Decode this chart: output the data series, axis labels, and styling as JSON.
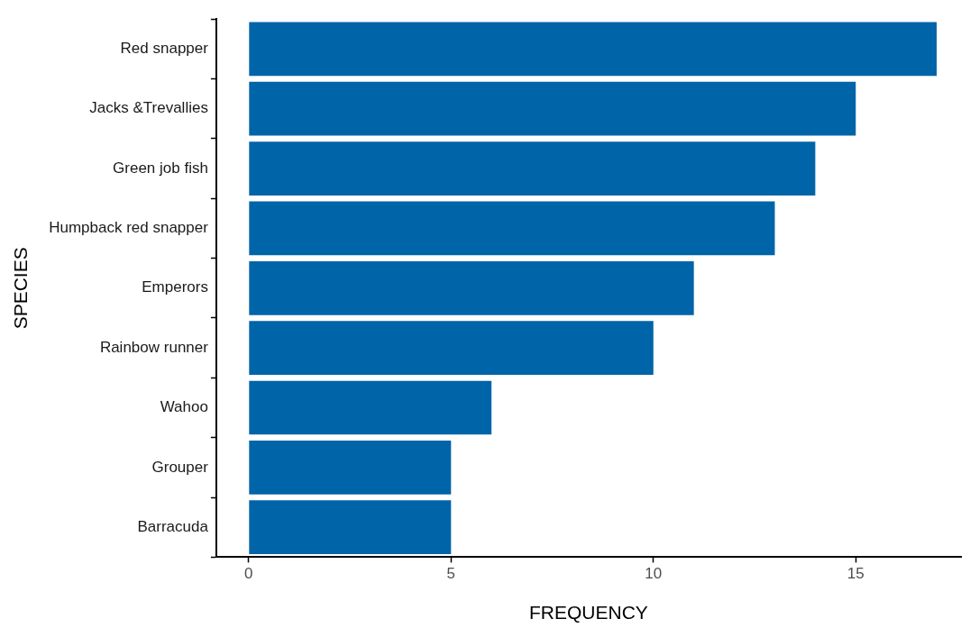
{
  "chart_data": {
    "type": "bar",
    "orientation": "horizontal",
    "xlabel": "FREQUENCY",
    "ylabel": "SPECIES",
    "categories": [
      "Red snapper",
      "Jacks &Trevallies",
      "Green job fish",
      "Humpback red snapper",
      "Emperors",
      "Rainbow runner",
      "Wahoo",
      "Grouper",
      "Barracuda"
    ],
    "values": [
      17,
      15,
      14,
      13,
      11,
      10,
      6,
      5,
      5
    ],
    "color": "#0064a8",
    "xlim": [
      -0.8,
      17.6
    ],
    "xticks": [
      0,
      5,
      10,
      15
    ],
    "grid": false,
    "legend": false
  }
}
